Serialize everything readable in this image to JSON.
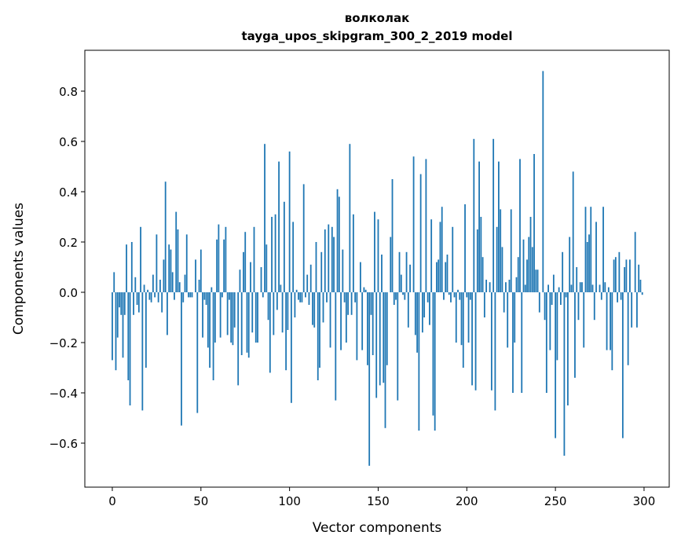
{
  "chart_data": {
    "type": "bar",
    "title": "волколак",
    "subtitle": "tayga_upos_skipgram_300_2_2019 model",
    "xlabel": "Vector components",
    "ylabel": "Components values",
    "xlim": [
      -15.5,
      314.2
    ],
    "ylim": [
      -0.775,
      0.9625
    ],
    "xticks": [
      0,
      50,
      100,
      150,
      200,
      250,
      300
    ],
    "xtick_labels": [
      "0",
      "50",
      "100",
      "150",
      "200",
      "250",
      "300"
    ],
    "yticks": [
      -0.6,
      -0.4,
      -0.2,
      0.0,
      0.2,
      0.4,
      0.6,
      0.8
    ],
    "ytick_labels": [
      "−0.6",
      "−0.4",
      "−0.2",
      "0.0",
      "0.2",
      "0.4",
      "0.6",
      "0.8"
    ],
    "grid": false,
    "color": "#1f77b4",
    "values": [
      -0.27,
      0.08,
      -0.31,
      -0.18,
      -0.06,
      -0.09,
      -0.26,
      -0.09,
      0.19,
      -0.35,
      -0.45,
      0.2,
      -0.09,
      0.06,
      -0.05,
      -0.08,
      0.26,
      -0.47,
      0.03,
      -0.3,
      0.01,
      -0.03,
      -0.04,
      0.07,
      -0.02,
      0.23,
      -0.04,
      0.05,
      -0.08,
      0.13,
      0.44,
      -0.17,
      0.19,
      0.17,
      0.08,
      -0.03,
      0.32,
      0.25,
      0.04,
      -0.53,
      -0.04,
      0.07,
      0.23,
      -0.02,
      -0.02,
      -0.02,
      0.0,
      0.13,
      -0.48,
      0.05,
      0.17,
      -0.18,
      -0.03,
      -0.05,
      -0.22,
      -0.3,
      0.02,
      -0.35,
      -0.2,
      0.21,
      0.27,
      -0.18,
      -0.02,
      0.21,
      0.26,
      -0.17,
      -0.03,
      -0.2,
      -0.21,
      -0.14,
      0.0,
      -0.37,
      0.09,
      -0.25,
      0.16,
      0.24,
      -0.24,
      -0.26,
      0.12,
      -0.16,
      0.26,
      -0.2,
      -0.2,
      0.0,
      0.1,
      -0.02,
      0.59,
      0.19,
      -0.11,
      -0.32,
      0.3,
      -0.17,
      0.31,
      -0.07,
      0.52,
      0.03,
      -0.16,
      0.36,
      -0.31,
      -0.15,
      0.56,
      -0.44,
      0.28,
      -0.1,
      0.01,
      -0.03,
      -0.04,
      -0.04,
      0.43,
      -0.02,
      0.07,
      -0.05,
      0.11,
      -0.13,
      -0.14,
      0.2,
      -0.35,
      -0.3,
      0.16,
      -0.12,
      0.25,
      -0.04,
      0.27,
      -0.22,
      0.26,
      0.22,
      -0.43,
      0.41,
      0.38,
      -0.23,
      0.17,
      -0.04,
      -0.2,
      -0.09,
      0.59,
      -0.09,
      0.31,
      -0.04,
      -0.27,
      0.0,
      0.12,
      -0.23,
      0.02,
      0.01,
      -0.29,
      -0.69,
      -0.09,
      -0.25,
      0.32,
      -0.42,
      0.29,
      -0.37,
      0.15,
      -0.36,
      -0.54,
      -0.29,
      0.0,
      0.22,
      0.45,
      -0.05,
      -0.03,
      -0.43,
      0.16,
      0.07,
      -0.01,
      -0.03,
      0.16,
      -0.14,
      0.11,
      0.0,
      0.54,
      -0.17,
      -0.24,
      -0.55,
      0.47,
      -0.16,
      -0.1,
      0.53,
      -0.04,
      -0.13,
      0.29,
      -0.49,
      -0.55,
      0.12,
      0.13,
      0.28,
      0.34,
      -0.03,
      0.12,
      0.15,
      -0.01,
      -0.04,
      0.26,
      -0.02,
      -0.2,
      0.01,
      -0.03,
      -0.21,
      -0.3,
      0.35,
      -0.02,
      -0.2,
      -0.03,
      -0.37,
      0.61,
      -0.39,
      0.25,
      0.52,
      0.3,
      0.14,
      -0.1,
      0.05,
      0.0,
      0.04,
      -0.39,
      0.61,
      -0.47,
      0.26,
      0.52,
      0.33,
      0.18,
      -0.08,
      0.04,
      -0.22,
      0.05,
      0.33,
      -0.4,
      -0.2,
      0.06,
      0.14,
      0.53,
      -0.4,
      0.21,
      0.03,
      0.13,
      0.22,
      0.3,
      0.18,
      0.55,
      0.09,
      0.09,
      -0.08,
      0.0,
      0.88,
      -0.11,
      -0.4,
      0.03,
      -0.23,
      -0.05,
      0.07,
      -0.58,
      -0.27,
      0.02,
      -0.05,
      0.16,
      -0.65,
      -0.02,
      -0.45,
      0.22,
      0.03,
      0.48,
      -0.34,
      0.1,
      -0.11,
      0.04,
      0.04,
      -0.22,
      0.34,
      0.2,
      0.23,
      0.34,
      0.03,
      -0.11,
      0.28,
      0.0,
      0.03,
      -0.03,
      0.34,
      0.04,
      -0.23,
      0.02,
      -0.23,
      -0.31,
      0.13,
      0.14,
      -0.04,
      0.16,
      -0.03,
      -0.58,
      0.1,
      0.13,
      -0.29,
      0.13,
      -0.14,
      0.0,
      0.24,
      -0.14,
      0.11,
      0.05,
      -0.01
    ]
  }
}
